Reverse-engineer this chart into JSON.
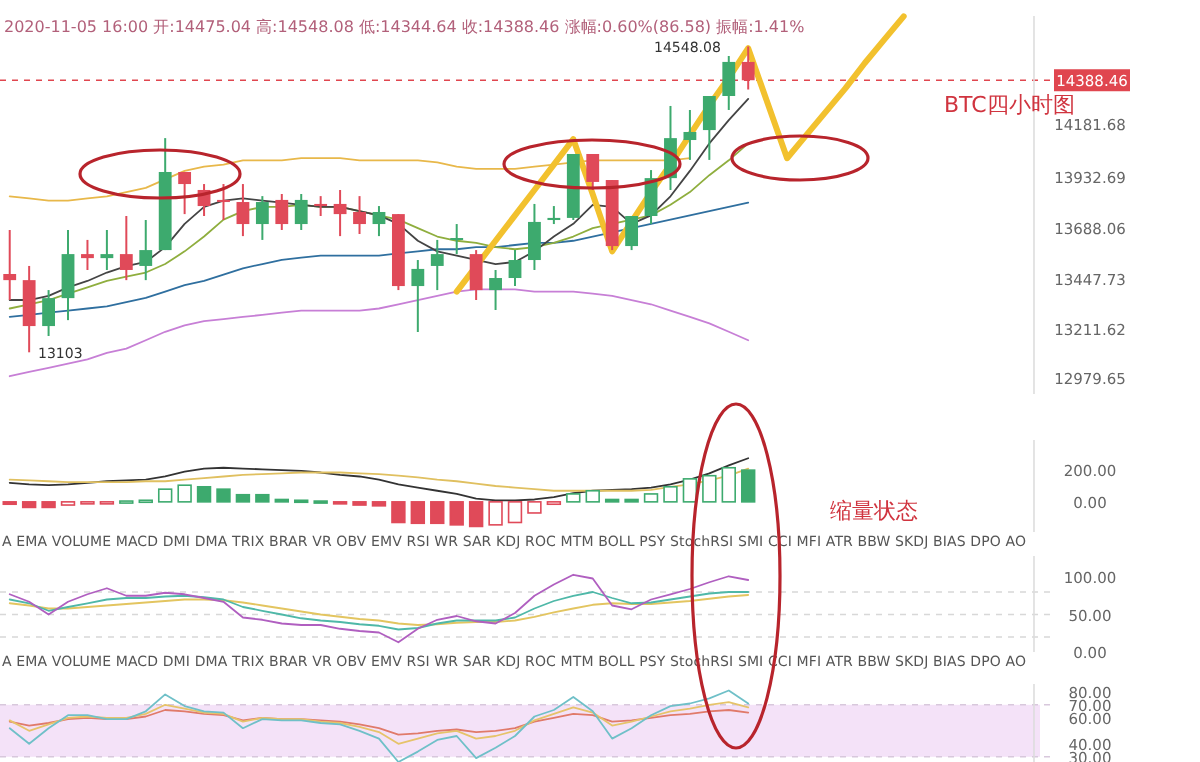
{
  "chart_data": [
    {
      "type": "candlestick",
      "categories": [
        null,
        null,
        null,
        null,
        null,
        null,
        null,
        null,
        null,
        null,
        null,
        null,
        null,
        null,
        null,
        null,
        null,
        null,
        null,
        null,
        null,
        null,
        null,
        null,
        null,
        null,
        null,
        null,
        null,
        null,
        null,
        null,
        null,
        null,
        null,
        null,
        null,
        null,
        null,
        null,
        null,
        null,
        null,
        null,
        null,
        null,
        null,
        null,
        null,
        null,
        null,
        null,
        null
      ],
      "ohlc": [
        [
          13473,
          13681,
          13350,
          13444
        ],
        [
          13444,
          13511,
          13103,
          13227
        ],
        [
          13227,
          13397,
          13180,
          13359
        ],
        [
          13359,
          13681,
          13255,
          13567
        ],
        [
          13567,
          13634,
          13492,
          13548
        ],
        [
          13548,
          13681,
          13492,
          13567
        ],
        [
          13567,
          13747,
          13444,
          13492
        ],
        [
          13511,
          13728,
          13444,
          13586
        ],
        [
          13586,
          14115,
          13586,
          13955
        ],
        [
          13955,
          13955,
          13756,
          13898
        ],
        [
          13870,
          13898,
          13747,
          13794
        ],
        [
          13823,
          13898,
          13728,
          13813
        ],
        [
          13813,
          13898,
          13652,
          13709
        ],
        [
          13709,
          13841,
          13634,
          13813
        ],
        [
          13823,
          13851,
          13681,
          13709
        ],
        [
          13709,
          13851,
          13681,
          13823
        ],
        [
          13804,
          13841,
          13747,
          13794
        ],
        [
          13804,
          13870,
          13652,
          13756
        ],
        [
          13766,
          13841,
          13662,
          13709
        ],
        [
          13709,
          13794,
          13652,
          13766
        ],
        [
          13756,
          13756,
          13397,
          13416
        ],
        [
          13416,
          13539,
          13199,
          13497
        ],
        [
          13511,
          13634,
          13397,
          13567
        ],
        [
          13634,
          13709,
          13567,
          13643
        ],
        [
          13567,
          13586,
          13350,
          13397
        ],
        [
          13397,
          13492,
          13303,
          13454
        ],
        [
          13454,
          13586,
          13416,
          13539
        ],
        [
          13539,
          13804,
          13492,
          13719
        ],
        [
          13728,
          13794,
          13709,
          13738
        ],
        [
          13738,
          14040,
          13728,
          14040
        ],
        [
          14040,
          14040,
          13870,
          13908
        ],
        [
          13917,
          13917,
          13586,
          13605
        ],
        [
          13605,
          13747,
          13586,
          13747
        ],
        [
          13747,
          13964,
          13709,
          13926
        ],
        [
          13926,
          14267,
          13870,
          14115
        ],
        [
          14106,
          14248,
          14012,
          14144
        ],
        [
          14153,
          14314,
          14012,
          14314
        ],
        [
          14314,
          14503,
          14248,
          14475
        ],
        [
          14475.04,
          14548.08,
          14344.64,
          14388.46
        ],
        null,
        null,
        null,
        null,
        null,
        null,
        null,
        null,
        null,
        null,
        null,
        null,
        null,
        null
      ],
      "series": [
        {
          "type": "line",
          "color": "#e8b84a",
          "values": [
            13840,
            13830,
            13820,
            13820,
            13830,
            13840,
            13860,
            13880,
            13920,
            13960,
            13980,
            13990,
            14010,
            14010,
            14010,
            14020,
            14020,
            14020,
            14010,
            14010,
            14010,
            14010,
            14000,
            13980,
            13970,
            13970,
            13970,
            13980,
            13990,
            14000,
            14010,
            14010,
            14010,
            14010,
            14010,
            14020,
            null,
            null,
            null,
            null,
            null,
            null,
            null,
            null,
            null,
            null,
            null,
            null,
            null,
            null,
            null,
            null,
            null
          ]
        },
        {
          "type": "line",
          "color": "#c77fd6",
          "values": [
            12990,
            13010,
            13030,
            13050,
            13070,
            13100,
            13120,
            13160,
            13200,
            13230,
            13250,
            13260,
            13270,
            13280,
            13290,
            13300,
            13300,
            13300,
            13300,
            13310,
            13330,
            13350,
            13370,
            13390,
            13400,
            13400,
            13400,
            13390,
            13390,
            13390,
            13380,
            13370,
            13350,
            13330,
            13300,
            13270,
            13240,
            13200,
            13160,
            null,
            null,
            null,
            null,
            null,
            null,
            null,
            null,
            null,
            null,
            null,
            null,
            null,
            null
          ]
        },
        {
          "type": "line",
          "color": "#2f6f9f",
          "values": [
            13270,
            13280,
            13290,
            13300,
            13310,
            13320,
            13340,
            13360,
            13390,
            13420,
            13440,
            13470,
            13500,
            13520,
            13540,
            13550,
            13560,
            13560,
            13560,
            13560,
            13570,
            13580,
            13590,
            13590,
            13600,
            13600,
            13610,
            13620,
            13620,
            13630,
            13650,
            13670,
            13690,
            13710,
            13730,
            13750,
            13770,
            13790,
            13810,
            null,
            null,
            null,
            null,
            null,
            null,
            null,
            null,
            null,
            null,
            null,
            null,
            null,
            null
          ]
        },
        {
          "type": "line",
          "color": "#8fae3e",
          "values": [
            13310,
            13330,
            13350,
            13380,
            13410,
            13440,
            13460,
            13480,
            13520,
            13580,
            13650,
            13730,
            13770,
            13790,
            13790,
            13800,
            13790,
            13790,
            13770,
            13750,
            13730,
            13690,
            13650,
            13630,
            13620,
            13600,
            13590,
            13600,
            13620,
            13650,
            13690,
            13710,
            13730,
            13750,
            13800,
            13860,
            13940,
            14010,
            14090,
            null,
            null,
            null,
            null,
            null,
            null,
            null,
            null,
            null,
            null,
            null,
            null,
            null,
            null
          ]
        },
        {
          "type": "line",
          "color": "#444444",
          "values": [
            13350,
            13350,
            13370,
            13410,
            13440,
            13480,
            13510,
            13530,
            13600,
            13710,
            13790,
            13820,
            13830,
            13820,
            13810,
            13800,
            13790,
            13790,
            13770,
            13750,
            13710,
            13630,
            13580,
            13560,
            13540,
            13520,
            13530,
            13580,
            13650,
            13710,
            13800,
            13790,
            13710,
            13750,
            13840,
            13960,
            14090,
            14200,
            14300,
            null,
            null,
            null,
            null,
            null,
            null,
            null,
            null,
            null,
            null,
            null,
            null,
            null,
            null
          ]
        },
        {
          "type": "line",
          "color": "#f2c12e",
          "values": [
            null,
            null,
            null,
            null,
            null,
            null,
            null,
            null,
            null,
            null,
            null,
            null,
            null,
            null,
            null,
            null,
            null,
            null,
            null,
            null,
            null,
            null,
            null,
            13390,
            13510,
            13630,
            13750,
            13870,
            13990,
            14110,
            13850,
            13580,
            13720,
            13860,
            13990,
            14130,
            14270,
            14400,
            14540,
            14280,
            14020,
            14130,
            14240,
            14350,
            14470,
            14580,
            14690,
            null,
            null,
            null,
            null,
            null,
            null
          ]
        }
      ],
      "ylim": [
        12906,
        14692
      ],
      "yticks": [
        14181.68,
        13932.69,
        13688.06,
        13447.73,
        13211.62,
        12979.65
      ],
      "ref_lines": [
        {
          "axis": "y",
          "value": 14388.46,
          "label": "14388.46",
          "color": "#e0464f",
          "line_style": "dashed"
        }
      ],
      "annotations": [
        "2020-11-05 16:00 开:14475.04 高:14548.08 低:14344.64 收:14388.46 涨幅:0.60%(86.58) 振幅:1.41%",
        "14548.08",
        "13103",
        "BTC四小时图"
      ]
    },
    {
      "type": "bar",
      "categories": [
        null,
        null,
        null,
        null,
        null,
        null,
        null,
        null,
        null,
        null,
        null,
        null,
        null,
        null,
        null,
        null,
        null,
        null,
        null,
        null,
        null,
        null,
        null,
        null,
        null,
        null,
        null,
        null,
        null,
        null,
        null,
        null,
        null,
        null,
        null,
        null,
        null,
        null,
        null,
        null,
        null,
        null,
        null,
        null,
        null,
        null,
        null,
        null,
        null,
        null,
        null,
        null,
        null
      ],
      "values": [
        -15,
        -35,
        -35,
        -20,
        -10,
        -5,
        5,
        10,
        80,
        105,
        95,
        80,
        45,
        45,
        15,
        10,
        5,
        -10,
        -20,
        -25,
        -130,
        -135,
        -135,
        -145,
        -155,
        -145,
        -130,
        -70,
        -15,
        50,
        70,
        15,
        15,
        50,
        95,
        145,
        165,
        215,
        200,
        null,
        null,
        null,
        null,
        null,
        null,
        null,
        null,
        null,
        null,
        null,
        null,
        null,
        null
      ],
      "colors": [
        "#e04a59",
        "#e04a59",
        "#e04a59",
        "#e04a59",
        "#e04a59",
        "#e04a59",
        "#3daa6e",
        "#3daa6e",
        "#3daa6e",
        "#3daa6e",
        "#3daa6e",
        "#3daa6e",
        "#3daa6e",
        "#3daa6e",
        "#3daa6e",
        "#3daa6e",
        "#3daa6e",
        "#e04a59",
        "#e04a59",
        "#e04a59",
        "#e04a59",
        "#e04a59",
        "#e04a59",
        "#e04a59",
        "#e04a59",
        "#e04a59",
        "#e04a59",
        "#e04a59",
        "#e04a59",
        "#3daa6e",
        "#3daa6e",
        "#3daa6e",
        "#3daa6e",
        "#3daa6e",
        "#3daa6e",
        "#3daa6e",
        "#3daa6e",
        "#3daa6e",
        "#3daa6e",
        null,
        null,
        null,
        null,
        null,
        null,
        null,
        null,
        null,
        null,
        null,
        null,
        null,
        null
      ],
      "series": [
        {
          "type": "line",
          "color": "#333333",
          "values": [
            120,
            110,
            105,
            110,
            120,
            130,
            135,
            140,
            160,
            190,
            210,
            215,
            210,
            205,
            200,
            195,
            185,
            170,
            160,
            140,
            110,
            90,
            70,
            50,
            20,
            10,
            10,
            15,
            30,
            55,
            70,
            75,
            80,
            90,
            110,
            140,
            180,
            230,
            275,
            null,
            null,
            null,
            null,
            null,
            null,
            null,
            null,
            null,
            null,
            null,
            null,
            null,
            null
          ]
        },
        {
          "type": "line",
          "color": "#e0c060",
          "values": [
            140,
            135,
            130,
            125,
            125,
            125,
            125,
            130,
            130,
            140,
            150,
            160,
            170,
            175,
            180,
            185,
            185,
            185,
            180,
            175,
            165,
            155,
            140,
            130,
            115,
            100,
            90,
            80,
            70,
            70,
            70,
            70,
            70,
            75,
            95,
            110,
            135,
            165,
            210,
            null,
            null,
            null,
            null,
            null,
            null,
            null,
            null,
            null,
            null,
            null,
            null,
            null,
            null
          ]
        }
      ],
      "ylim": [
        -190,
        390
      ],
      "yticks": [
        {
          "value": 200,
          "label": "200.00"
        },
        {
          "value": 0,
          "label": "0.00"
        }
      ],
      "annotations": [
        "缩量状态",
        "A EMA VOLUME MACD DMI DMA TRIX BRAR VR OBV EMV RSI WR SAR KDJ ROC MTM BOLL PSY StochRSI SMI CCI MFI ATR BBW SKDJ BIAS DPO AO"
      ]
    },
    {
      "type": "line",
      "categories": [
        null,
        null,
        null,
        null,
        null,
        null,
        null,
        null,
        null,
        null,
        null,
        null,
        null,
        null,
        null,
        null,
        null,
        null,
        null,
        null,
        null,
        null,
        null,
        null,
        null,
        null,
        null,
        null,
        null,
        null,
        null,
        null,
        null,
        null,
        null,
        null,
        null,
        null,
        null,
        null,
        null,
        null,
        null,
        null,
        null,
        null,
        null,
        null,
        null,
        null,
        null,
        null,
        null
      ],
      "series": [
        {
          "color": "#e3c560",
          "values": [
            65,
            62,
            58,
            58,
            60,
            62,
            64,
            66,
            68,
            70,
            70,
            69,
            66,
            62,
            58,
            54,
            50,
            47,
            44,
            42,
            38,
            36,
            37,
            39,
            40,
            40,
            42,
            47,
            53,
            58,
            63,
            65,
            64,
            64,
            66,
            68,
            71,
            74,
            76,
            null,
            null,
            null,
            null,
            null,
            null,
            null,
            null,
            null,
            null,
            null,
            null,
            null,
            null
          ]
        },
        {
          "color": "#4fb8a8",
          "values": [
            70,
            65,
            55,
            60,
            65,
            70,
            72,
            72,
            74,
            75,
            73,
            70,
            60,
            55,
            50,
            45,
            42,
            40,
            37,
            35,
            30,
            32,
            38,
            42,
            42,
            42,
            46,
            58,
            68,
            75,
            80,
            72,
            65,
            66,
            70,
            74,
            78,
            80,
            80,
            null,
            null,
            null,
            null,
            null,
            null,
            null,
            null,
            null,
            null,
            null,
            null,
            null,
            null
          ]
        },
        {
          "color": "#b05fc0",
          "values": [
            77,
            67,
            50,
            67,
            77,
            85,
            75,
            75,
            79,
            77,
            72,
            67,
            46,
            43,
            38,
            36,
            36,
            31,
            28,
            26,
            13,
            31,
            43,
            48,
            41,
            38,
            52,
            75,
            90,
            103,
            98,
            62,
            57,
            70,
            77,
            84,
            93,
            101,
            96,
            null,
            null,
            null,
            null,
            null,
            null,
            null,
            null,
            null,
            null,
            null,
            null,
            null,
            null
          ]
        }
      ],
      "ylim": [
        0,
        128
      ],
      "yticks": [
        {
          "value": 100,
          "label": "100.00"
        },
        {
          "value": 50,
          "label": "50.00"
        },
        {
          "value": 0,
          "label": "0.00"
        }
      ],
      "ref_lines": [
        {
          "axis": "y",
          "value": 80,
          "color": "#d8d8d8",
          "line_style": "dashed"
        },
        {
          "axis": "y",
          "value": 50,
          "color": "#d8d8d8",
          "line_style": "dashed"
        },
        {
          "axis": "y",
          "value": 20,
          "color": "#d8d8d8",
          "line_style": "dashed"
        }
      ],
      "annotations": [
        "A EMA VOLUME MACD DMI DMA TRIX BRAR VR OBV EMV RSI WR SAR KDJ ROC MTM BOLL PSY StochRSI SMI CCI MFI ATR BBW SKDJ BIAS DPO AO"
      ]
    },
    {
      "type": "line",
      "categories": [
        null,
        null,
        null,
        null,
        null,
        null,
        null,
        null,
        null,
        null,
        null,
        null,
        null,
        null,
        null,
        null,
        null,
        null,
        null,
        null,
        null,
        null,
        null,
        null,
        null,
        null,
        null,
        null,
        null,
        null,
        null,
        null,
        null,
        null,
        null,
        null,
        null,
        null,
        null,
        null,
        null,
        null,
        null,
        null,
        null,
        null,
        null,
        null,
        null,
        null,
        null,
        null,
        null
      ],
      "series": [
        {
          "color": "#e07a6a",
          "values": [
            57,
            54,
            56,
            59,
            60,
            59,
            59,
            61,
            66,
            65,
            63,
            62,
            58,
            60,
            59,
            59,
            58,
            57,
            55,
            52,
            47,
            48,
            50,
            51,
            49,
            50,
            52,
            57,
            60,
            63,
            62,
            57,
            58,
            60,
            62,
            63,
            65,
            66,
            64,
            null,
            null,
            null,
            null,
            null,
            null,
            null,
            null,
            null,
            null,
            null,
            null,
            null,
            null
          ]
        },
        {
          "color": "#e6c36a",
          "values": [
            58,
            50,
            55,
            60,
            61,
            60,
            60,
            63,
            70,
            67,
            64,
            63,
            57,
            60,
            59,
            59,
            57,
            56,
            53,
            49,
            40,
            44,
            48,
            50,
            44,
            46,
            50,
            58,
            63,
            68,
            64,
            54,
            57,
            61,
            65,
            67,
            70,
            72,
            68,
            null,
            null,
            null,
            null,
            null,
            null,
            null,
            null,
            null,
            null,
            null,
            null,
            null,
            null
          ]
        },
        {
          "color": "#6fc0c8",
          "values": [
            52,
            40,
            52,
            62,
            62,
            59,
            59,
            65,
            78,
            69,
            65,
            64,
            52,
            59,
            58,
            58,
            56,
            55,
            50,
            44,
            26,
            34,
            43,
            46,
            29,
            37,
            46,
            61,
            66,
            76,
            65,
            44,
            52,
            62,
            69,
            71,
            75,
            81,
            71,
            null,
            null,
            null,
            null,
            null,
            null,
            null,
            null,
            null,
            null,
            null,
            null,
            null,
            null
          ]
        }
      ],
      "ylim": [
        26,
        86
      ],
      "yticks": [
        {
          "value": 80,
          "label": "80.00"
        },
        {
          "value": 70,
          "label": "70.00"
        },
        {
          "value": 60,
          "label": "60.00"
        },
        {
          "value": 40,
          "label": "40.00"
        },
        {
          "value": 30,
          "label": "30.00"
        }
      ],
      "bands": [
        {
          "axis": "y",
          "from": 30,
          "to": 70,
          "color": "#f4e2f8"
        }
      ],
      "ref_lines": [
        {
          "axis": "y",
          "value": 70,
          "color": "#d8c8dc",
          "line_style": "dashed"
        },
        {
          "axis": "y",
          "value": 30,
          "color": "#d8c8dc",
          "line_style": "dashed"
        }
      ]
    }
  ]
}
